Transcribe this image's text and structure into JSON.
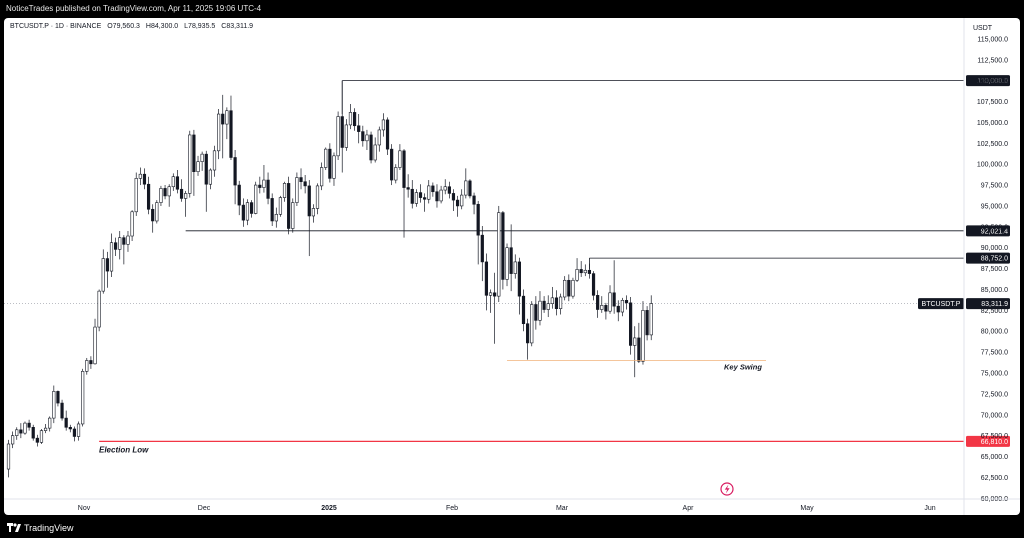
{
  "header": {
    "published": "NoticeTrades published on TradingView.com, Apr 11, 2025 19:06 UTC-4"
  },
  "symbol": {
    "name": "BTCUSDT.P · 1D · BINANCE",
    "open": "O79,560.3",
    "high": "H84,300.0",
    "low": "L78,935.5",
    "close": "C83,311.9"
  },
  "footer": {
    "brand": "TradingView"
  },
  "chart_data": {
    "type": "candlestick",
    "currency": "USDT",
    "ylim": [
      58000,
      117500
    ],
    "y_ticks": [
      60000,
      62500,
      65000,
      67500,
      70000,
      72500,
      75000,
      77500,
      80000,
      82500,
      85000,
      87500,
      90000,
      92500,
      95000,
      97500,
      100000,
      102500,
      105000,
      107500,
      110000,
      112500,
      115000
    ],
    "x_labels": [
      "Nov",
      "Dec",
      "2025",
      "Feb",
      "Mar",
      "Apr",
      "May",
      "Jun"
    ],
    "up_color": "#ffffff",
    "down_color": "#131722",
    "candles": [
      [
        63500,
        67000,
        62500,
        66500
      ],
      [
        66500,
        68000,
        66000,
        67500
      ],
      [
        67500,
        68500,
        67000,
        68200
      ],
      [
        68200,
        69000,
        67200,
        67800
      ],
      [
        67800,
        69200,
        67600,
        69000
      ],
      [
        69000,
        69400,
        68100,
        68500
      ],
      [
        68500,
        68800,
        66900,
        67200
      ],
      [
        67200,
        67600,
        66200,
        66700
      ],
      [
        66700,
        68300,
        66500,
        68100
      ],
      [
        68100,
        68900,
        67800,
        68400
      ],
      [
        68400,
        69800,
        68000,
        69600
      ],
      [
        69600,
        73500,
        69000,
        72800
      ],
      [
        72800,
        72900,
        71000,
        71400
      ],
      [
        71400,
        71800,
        69300,
        69600
      ],
      [
        69600,
        70500,
        68100,
        68500
      ],
      [
        68500,
        68800,
        67900,
        68300
      ],
      [
        68300,
        68600,
        66810,
        67400
      ],
      [
        67400,
        69200,
        66900,
        68900
      ],
      [
        68900,
        75500,
        68600,
        75200
      ],
      [
        75200,
        76800,
        74800,
        76500
      ],
      [
        76500,
        77000,
        75500,
        76100
      ],
      [
        76100,
        81500,
        76000,
        80500
      ],
      [
        80500,
        85000,
        80000,
        84800
      ],
      [
        84800,
        89800,
        84500,
        88700
      ],
      [
        88700,
        89500,
        85200,
        87200
      ],
      [
        87200,
        91700,
        86500,
        90600
      ],
      [
        90600,
        91200,
        89000,
        89800
      ],
      [
        89800,
        92000,
        88600,
        91200
      ],
      [
        91200,
        91500,
        88000,
        90400
      ],
      [
        90400,
        92000,
        89500,
        91400
      ],
      [
        91400,
        94500,
        90800,
        94300
      ],
      [
        94300,
        99000,
        93800,
        98300
      ],
      [
        98300,
        99600,
        97500,
        98800
      ],
      [
        98800,
        99500,
        97000,
        97600
      ],
      [
        97600,
        98500,
        94000,
        94600
      ],
      [
        94600,
        95200,
        91800,
        93200
      ],
      [
        93200,
        95700,
        92900,
        95400
      ],
      [
        95400,
        97400,
        95000,
        97100
      ],
      [
        97100,
        97500,
        95800,
        96200
      ],
      [
        96200,
        97600,
        94900,
        97300
      ],
      [
        97300,
        98900,
        96800,
        98500
      ],
      [
        98500,
        99300,
        96500,
        97000
      ],
      [
        97000,
        98200,
        95500,
        95900
      ],
      [
        95900,
        96800,
        93700,
        96500
      ],
      [
        96500,
        104000,
        96000,
        103500
      ],
      [
        103500,
        104100,
        96200,
        99100
      ],
      [
        99100,
        101000,
        98600,
        100300
      ],
      [
        100300,
        101500,
        99200,
        101200
      ],
      [
        101200,
        101600,
        94300,
        97600
      ],
      [
        97600,
        99500,
        97000,
        99300
      ],
      [
        99300,
        102200,
        98500,
        101600
      ],
      [
        101600,
        106600,
        100600,
        106000
      ],
      [
        106000,
        108300,
        100700,
        104800
      ],
      [
        104800,
        106800,
        103000,
        106400
      ],
      [
        106400,
        108200,
        100500,
        100800
      ],
      [
        100800,
        101700,
        95200,
        97500
      ],
      [
        97500,
        98000,
        93900,
        95100
      ],
      [
        95100,
        95900,
        92500,
        93300
      ],
      [
        93300,
        95800,
        92700,
        95400
      ],
      [
        95400,
        95700,
        93600,
        94100
      ],
      [
        94100,
        97900,
        94000,
        97500
      ],
      [
        97500,
        98500,
        96500,
        97200
      ],
      [
        97200,
        99900,
        96600,
        98100
      ],
      [
        98100,
        99000,
        95200,
        95900
      ],
      [
        95900,
        96500,
        92600,
        93200
      ],
      [
        93200,
        94800,
        92400,
        94000
      ],
      [
        94000,
        96200,
        93700,
        96000
      ],
      [
        96000,
        97900,
        95500,
        97700
      ],
      [
        97700,
        98500,
        91600,
        92300
      ],
      [
        92300,
        95900,
        91800,
        95400
      ],
      [
        95400,
        99000,
        95000,
        98400
      ],
      [
        98400,
        99500,
        97000,
        97900
      ],
      [
        97900,
        98700,
        96500,
        97400
      ],
      [
        97400,
        98100,
        89000,
        93800
      ],
      [
        93800,
        95200,
        93000,
        94700
      ],
      [
        94700,
        97700,
        94000,
        97400
      ],
      [
        97400,
        100200,
        96900,
        99600
      ],
      [
        99600,
        102000,
        99300,
        101800
      ],
      [
        101800,
        102500,
        97800,
        98300
      ],
      [
        98300,
        101400,
        97400,
        101000
      ],
      [
        101000,
        106300,
        100500,
        105700
      ],
      [
        105700,
        110000,
        99000,
        102000
      ],
      [
        102000,
        105400,
        101600,
        104700
      ],
      [
        104700,
        107200,
        104200,
        106200
      ],
      [
        106200,
        106700,
        104000,
        104600
      ],
      [
        104600,
        106000,
        102500,
        103900
      ],
      [
        103900,
        104600,
        102100,
        102800
      ],
      [
        102800,
        104100,
        101700,
        103500
      ],
      [
        103500,
        103900,
        100100,
        100500
      ],
      [
        100500,
        103200,
        100200,
        102300
      ],
      [
        102300,
        104500,
        101500,
        104100
      ],
      [
        104100,
        106100,
        103300,
        105300
      ],
      [
        105300,
        105600,
        101100,
        101800
      ],
      [
        101800,
        102400,
        97500,
        98100
      ],
      [
        98100,
        100000,
        97700,
        99600
      ],
      [
        99600,
        102400,
        99300,
        101600
      ],
      [
        101600,
        101800,
        91200,
        97200
      ],
      [
        97200,
        98800,
        96000,
        97000
      ],
      [
        97000,
        98100,
        94700,
        95300
      ],
      [
        95300,
        97000,
        94900,
        96600
      ],
      [
        96600,
        97600,
        95400,
        96000
      ],
      [
        96000,
        96500,
        94300,
        95800
      ],
      [
        95800,
        98100,
        95300,
        97400
      ],
      [
        97400,
        97800,
        96100,
        96700
      ],
      [
        96700,
        97600,
        94800,
        95600
      ],
      [
        95600,
        97400,
        95300,
        96900
      ],
      [
        96900,
        98200,
        96400,
        97300
      ],
      [
        97300,
        97900,
        95900,
        96500
      ],
      [
        96500,
        97000,
        94400,
        95700
      ],
      [
        95700,
        96200,
        93700,
        95000
      ],
      [
        95000,
        97000,
        94600,
        96300
      ],
      [
        96300,
        99500,
        95900,
        98000
      ],
      [
        98000,
        98200,
        95900,
        96200
      ],
      [
        96200,
        96600,
        94000,
        95200
      ],
      [
        95200,
        95600,
        88000,
        91500
      ],
      [
        91500,
        92600,
        86000,
        88300
      ],
      [
        88300,
        89300,
        82500,
        84300
      ],
      [
        84300,
        85000,
        82200,
        84600
      ],
      [
        84600,
        87000,
        78500,
        84200
      ],
      [
        84200,
        95000,
        83500,
        94200
      ],
      [
        94200,
        94400,
        85000,
        86200
      ],
      [
        86200,
        90500,
        85400,
        90000
      ],
      [
        90000,
        92800,
        84800,
        86900
      ],
      [
        86900,
        89200,
        86300,
        88300
      ],
      [
        88300,
        88800,
        82000,
        84200
      ],
      [
        84200,
        85000,
        80000,
        80900
      ],
      [
        80900,
        81500,
        76600,
        78600
      ],
      [
        78600,
        83600,
        78200,
        83200
      ],
      [
        83200,
        84200,
        80200,
        81300
      ],
      [
        81300,
        84800,
        80700,
        83600
      ],
      [
        83600,
        84200,
        82200,
        82600
      ],
      [
        82600,
        84300,
        81700,
        83300
      ],
      [
        83300,
        85300,
        82700,
        84000
      ],
      [
        84000,
        84900,
        81900,
        82700
      ],
      [
        82700,
        84500,
        82000,
        84100
      ],
      [
        84100,
        86600,
        83700,
        86100
      ],
      [
        86100,
        86800,
        83600,
        84200
      ],
      [
        84200,
        86400,
        83900,
        86100
      ],
      [
        86100,
        88752,
        85900,
        87400
      ],
      [
        87400,
        88400,
        86500,
        87000
      ],
      [
        87000,
        88000,
        86600,
        87300
      ],
      [
        87300,
        88100,
        86300,
        86900
      ],
      [
        86900,
        87200,
        83700,
        84300
      ],
      [
        84300,
        84900,
        81600,
        82600
      ],
      [
        82600,
        84200,
        82200,
        83100
      ],
      [
        83100,
        83400,
        81400,
        82400
      ],
      [
        82400,
        85500,
        82100,
        84600
      ],
      [
        84600,
        88500,
        82100,
        83000
      ],
      [
        83000,
        83700,
        81200,
        82300
      ],
      [
        82300,
        84000,
        81800,
        83700
      ],
      [
        83700,
        84300,
        82600,
        83400
      ],
      [
        83400,
        84100,
        77200,
        78300
      ],
      [
        78300,
        80600,
        74500,
        79200
      ],
      [
        79200,
        81000,
        76200,
        76400
      ],
      [
        76400,
        83600,
        76000,
        82500
      ],
      [
        82500,
        83000,
        78900,
        79560
      ],
      [
        79560,
        84300,
        78935,
        83312
      ]
    ],
    "annotations": [
      {
        "label": "Election Low",
        "price": 66810
      },
      {
        "label": "Key Swing",
        "price": 76500
      }
    ],
    "levels": [
      {
        "price": 110000,
        "label": "110,000.0",
        "color": "#131722"
      },
      {
        "price": 92021.4,
        "label": "92,021.4",
        "color": "#131722"
      },
      {
        "price": 88752,
        "label": "88,752.0",
        "color": "#131722"
      },
      {
        "price": 66810,
        "label": "66,810.0",
        "color": "#f23645"
      }
    ],
    "last_price": {
      "symbol": "BTCUSDT.P",
      "value": 83311.9,
      "label": "83,311.9"
    }
  }
}
